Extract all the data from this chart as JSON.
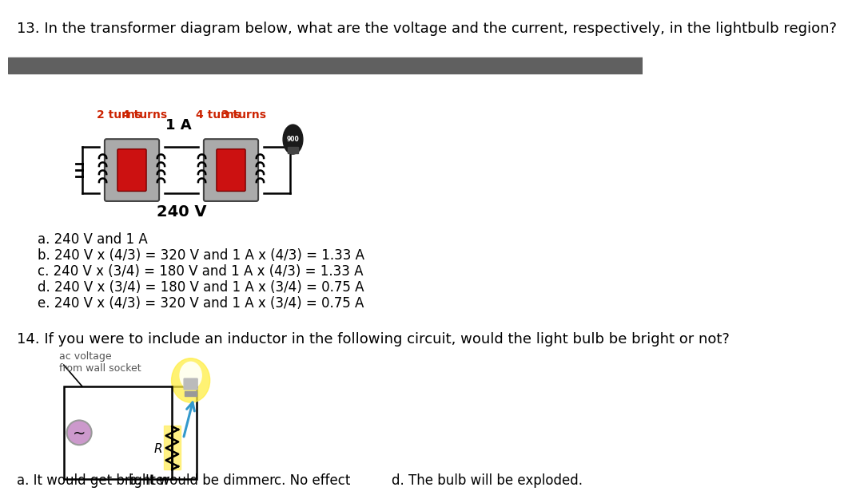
{
  "bg_color": "#ffffff",
  "header_bar_color": "#606060",
  "q13_text": "13. In the transformer diagram below, what are the voltage and the current, respectively, in the lightbulb region?",
  "q13_options": [
    "a. 240 V and 1 A",
    "b. 240 V x (4/3) = 320 V and 1 A x (4/3) = 1.33 A",
    "c. 240 V x (3/4) = 180 V and 1 A x (4/3) = 1.33 A",
    "d. 240 V x (3/4) = 180 V and 1 A x (3/4) = 0.75 A",
    "e. 240 V x (4/3) = 320 V and 1 A x (3/4) = 0.75 A"
  ],
  "q14_text": "14. If you were to include an inductor in the following circuit, would the light bulb be bright or not?",
  "q14_options": [
    "a. It would get brighter",
    "b. It would be dimmer",
    "c. No effect",
    "d. The bulb will be exploded."
  ],
  "text_color": "#000000",
  "red_color": "#cc2200",
  "gray_text_color": "#555555",
  "font_size_question": 13,
  "font_size_option": 12
}
